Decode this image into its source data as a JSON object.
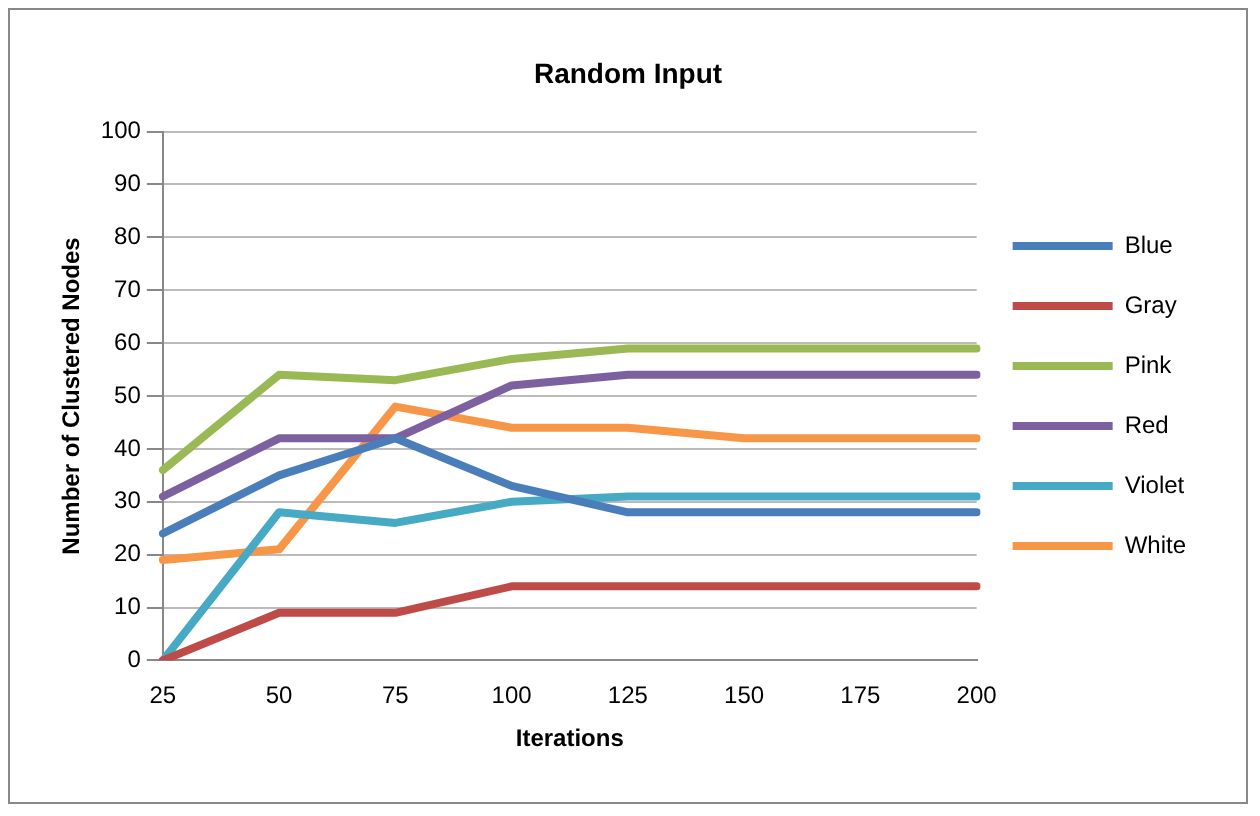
{
  "chart_data": {
    "type": "line",
    "title": "Random Input",
    "xlabel": "Iterations",
    "ylabel": "Number of Clustered Nodes",
    "categories": [
      "25",
      "50",
      "75",
      "100",
      "125",
      "150",
      "175",
      "200"
    ],
    "ylim": [
      0,
      100
    ],
    "yticks": [
      0,
      10,
      20,
      30,
      40,
      50,
      60,
      70,
      80,
      90,
      100
    ],
    "grid": "y",
    "legend": "right",
    "marker": "none",
    "line_style": "solid",
    "series": [
      {
        "name": "Blue",
        "color": "#4a7ebb",
        "values": [
          24,
          35,
          42,
          33,
          28,
          28,
          28,
          28
        ]
      },
      {
        "name": "Gray",
        "color": "#be4b48",
        "values": [
          0,
          9,
          9,
          14,
          14,
          14,
          14,
          14
        ]
      },
      {
        "name": "Pink",
        "color": "#98b954",
        "values": [
          36,
          54,
          53,
          57,
          59,
          59,
          59,
          59
        ]
      },
      {
        "name": "Red",
        "color": "#7d60a0",
        "values": [
          31,
          42,
          42,
          52,
          54,
          54,
          54,
          54
        ]
      },
      {
        "name": "Violet",
        "color": "#46aac5",
        "values": [
          0,
          28,
          26,
          30,
          31,
          31,
          31,
          31
        ]
      },
      {
        "name": "White",
        "color": "#f79646",
        "values": [
          19,
          21,
          48,
          44,
          44,
          42,
          42,
          42
        ]
      }
    ]
  }
}
